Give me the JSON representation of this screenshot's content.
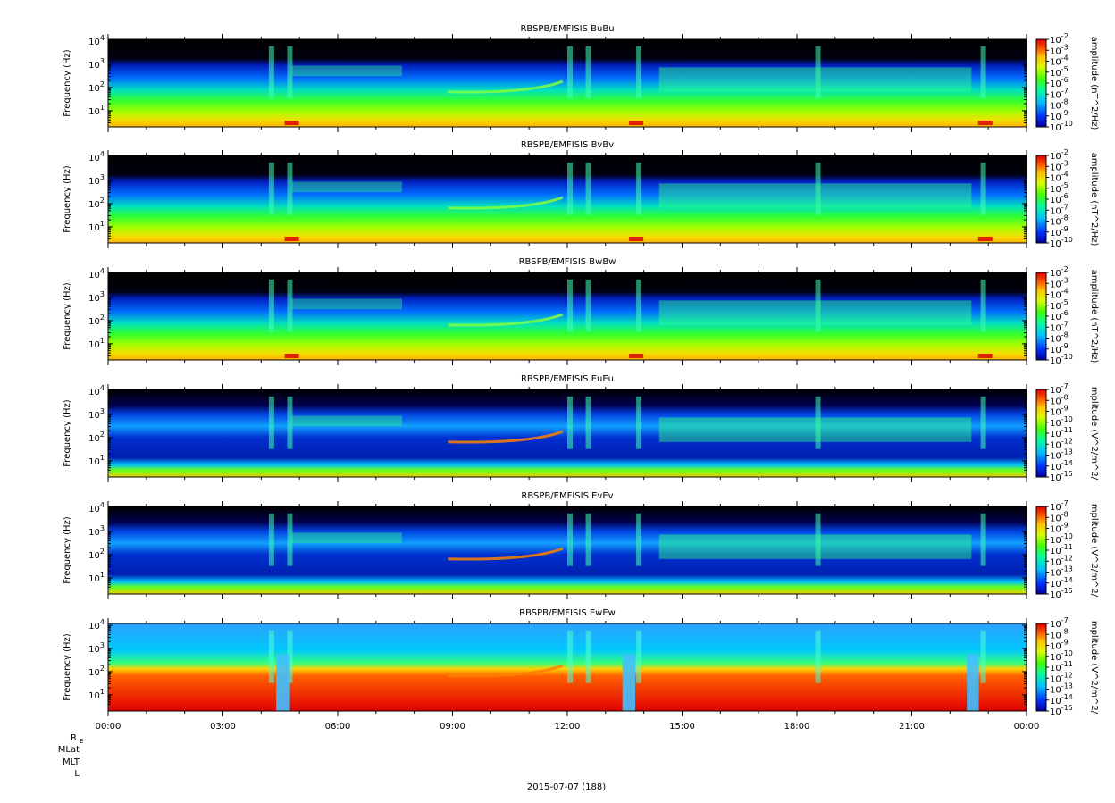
{
  "chart_data": [
    {
      "type": "heatmap",
      "title": "RBSPB/EMFISIS  BuBu",
      "ylabel": "Frequency (Hz)",
      "yscale": "log",
      "ylim": [
        2,
        12000
      ],
      "yticks": [
        "10^4",
        "10^3",
        "10^2",
        "10^1"
      ],
      "xticks": [
        "00:00",
        "03:00",
        "06:00",
        "09:00",
        "12:00",
        "15:00",
        "18:00",
        "21:00",
        "00:00"
      ],
      "colorbar": {
        "label": "amplitude (nT^2/Hz)",
        "scale": "log",
        "range": [
          1e-10,
          0.01
        ],
        "ticks": [
          "10^-2",
          "10^-3",
          "10^-4",
          "10^-5",
          "10^-6",
          "10^-7",
          "10^-8",
          "10^-9",
          "10^-10"
        ]
      }
    },
    {
      "type": "heatmap",
      "title": "RBSPB/EMFISIS  BvBv",
      "ylabel": "Frequency (Hz)",
      "yscale": "log",
      "ylim": [
        2,
        12000
      ],
      "yticks": [
        "10^4",
        "10^3",
        "10^2",
        "10^1"
      ],
      "xticks": [
        "00:00",
        "03:00",
        "06:00",
        "09:00",
        "12:00",
        "15:00",
        "18:00",
        "21:00",
        "00:00"
      ],
      "colorbar": {
        "label": "amplitude (nT^2/Hz)",
        "scale": "log",
        "range": [
          1e-10,
          0.01
        ],
        "ticks": [
          "10^-2",
          "10^-3",
          "10^-4",
          "10^-5",
          "10^-6",
          "10^-7",
          "10^-8",
          "10^-9",
          "10^-10"
        ]
      }
    },
    {
      "type": "heatmap",
      "title": "RBSPB/EMFISIS  BwBw",
      "ylabel": "Frequency (Hz)",
      "yscale": "log",
      "ylim": [
        2,
        12000
      ],
      "yticks": [
        "10^4",
        "10^3",
        "10^2",
        "10^1"
      ],
      "xticks": [
        "00:00",
        "03:00",
        "06:00",
        "09:00",
        "12:00",
        "15:00",
        "18:00",
        "21:00",
        "00:00"
      ],
      "colorbar": {
        "label": "amplitude (nT^2/Hz)",
        "scale": "log",
        "range": [
          1e-10,
          0.01
        ],
        "ticks": [
          "10^-2",
          "10^-3",
          "10^-4",
          "10^-5",
          "10^-6",
          "10^-7",
          "10^-8",
          "10^-9",
          "10^-10"
        ]
      }
    },
    {
      "type": "heatmap",
      "title": "RBSPB/EMFISIS  EuEu",
      "ylabel": "Frequency (Hz)",
      "yscale": "log",
      "ylim": [
        2,
        12000
      ],
      "yticks": [
        "10^4",
        "10^3",
        "10^2",
        "10^1"
      ],
      "xticks": [
        "00:00",
        "03:00",
        "06:00",
        "09:00",
        "12:00",
        "15:00",
        "18:00",
        "21:00",
        "00:00"
      ],
      "colorbar": {
        "label": "mplitude (V^2/m^2/",
        "scale": "log",
        "range": [
          1e-15,
          1e-07
        ],
        "ticks": [
          "10^-7",
          "10^-8",
          "10^-9",
          "10^-10",
          "10^-11",
          "10^-12",
          "10^-13",
          "10^-14",
          "10^-15"
        ]
      }
    },
    {
      "type": "heatmap",
      "title": "RBSPB/EMFISIS  EvEv",
      "ylabel": "Frequency (Hz)",
      "yscale": "log",
      "ylim": [
        2,
        12000
      ],
      "yticks": [
        "10^4",
        "10^3",
        "10^2",
        "10^1"
      ],
      "xticks": [
        "00:00",
        "03:00",
        "06:00",
        "09:00",
        "12:00",
        "15:00",
        "18:00",
        "21:00",
        "00:00"
      ],
      "colorbar": {
        "label": "mplitude (V^2/m^2/",
        "scale": "log",
        "range": [
          1e-15,
          1e-07
        ],
        "ticks": [
          "10^-7",
          "10^-8",
          "10^-9",
          "10^-10",
          "10^-11",
          "10^-12",
          "10^-13",
          "10^-14",
          "10^-15"
        ]
      }
    },
    {
      "type": "heatmap",
      "title": "RBSPB/EMFISIS  EwEw",
      "ylabel": "Frequency (Hz)",
      "yscale": "log",
      "ylim": [
        2,
        12000
      ],
      "yticks": [
        "10^4",
        "10^3",
        "10^2",
        "10^1"
      ],
      "xticks": [
        "00:00",
        "03:00",
        "06:00",
        "09:00",
        "12:00",
        "15:00",
        "18:00",
        "21:00",
        "00:00"
      ],
      "colorbar": {
        "label": "mplitude (V^2/m^2/",
        "scale": "log",
        "range": [
          1e-15,
          1e-07
        ],
        "ticks": [
          "10^-7",
          "10^-8",
          "10^-9",
          "10^-10",
          "10^-11",
          "10^-12",
          "10^-13",
          "10^-14",
          "10^-15"
        ]
      }
    }
  ],
  "footer": {
    "ephemeris_labels": [
      "R_E",
      "MLat",
      "MLT",
      "L"
    ],
    "date": "2015-07-07 (188)"
  },
  "colors": {
    "background": "#ffffff",
    "colormap": [
      "#0000c8",
      "#0060ff",
      "#00d0ff",
      "#00ff90",
      "#40ff00",
      "#d0ff00",
      "#ffd000",
      "#ff6000",
      "#e00000"
    ],
    "no_data": "#000000"
  }
}
